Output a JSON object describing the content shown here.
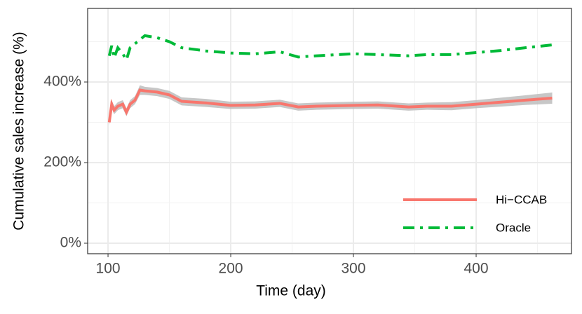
{
  "chart_data": {
    "type": "line",
    "x_label": "Time (day)",
    "y_label": "Cumulative sales increase (%)",
    "x": [
      101,
      103,
      105,
      108,
      112,
      115,
      118,
      122,
      126,
      130,
      140,
      150,
      160,
      180,
      200,
      220,
      240,
      255,
      270,
      300,
      320,
      345,
      360,
      380,
      400,
      420,
      440,
      462
    ],
    "series": [
      {
        "name": "Hi−CCAB",
        "color": "#F8766D",
        "dash": "solid",
        "values": [
          300,
          345,
          330,
          340,
          345,
          325,
          345,
          355,
          380,
          378,
          375,
          368,
          352,
          348,
          342,
          343,
          347,
          338,
          340,
          342,
          343,
          338,
          340,
          340,
          345,
          350,
          355,
          360
        ],
        "lower": [
          292,
          335,
          320,
          330,
          335,
          315,
          335,
          345,
          368,
          368,
          365,
          358,
          342,
          338,
          333,
          334,
          338,
          329,
          331,
          333,
          334,
          329,
          331,
          330,
          335,
          339,
          343,
          346
        ],
        "upper": [
          308,
          355,
          340,
          350,
          355,
          335,
          355,
          365,
          392,
          388,
          385,
          378,
          362,
          358,
          351,
          352,
          356,
          347,
          349,
          351,
          352,
          347,
          349,
          350,
          355,
          361,
          367,
          374
        ],
        "band_color": "#bdbdbd"
      },
      {
        "name": "Oracle",
        "color": "#00BA38",
        "dash": "dotdash",
        "values": [
          465,
          490,
          460,
          485,
          470,
          455,
          485,
          495,
          505,
          515,
          510,
          500,
          485,
          477,
          472,
          470,
          475,
          462,
          465,
          470,
          468,
          465,
          468,
          468,
          473,
          478,
          485,
          492
        ]
      }
    ],
    "xlim": [
      83.4,
      477.7
    ],
    "ylim": [
      -26.1,
      582.6
    ],
    "xticks": [
      100,
      200,
      300,
      400
    ],
    "yticks": [
      {
        "value": 0,
        "label": "0%"
      },
      {
        "value": 200,
        "label": "200%"
      },
      {
        "value": 400,
        "label": "400%"
      }
    ],
    "x_minor_ticks": [
      150,
      250,
      350,
      450
    ],
    "y_minor_ticks": [
      100,
      300,
      500
    ],
    "grid": true,
    "legend": "bottom-right"
  }
}
